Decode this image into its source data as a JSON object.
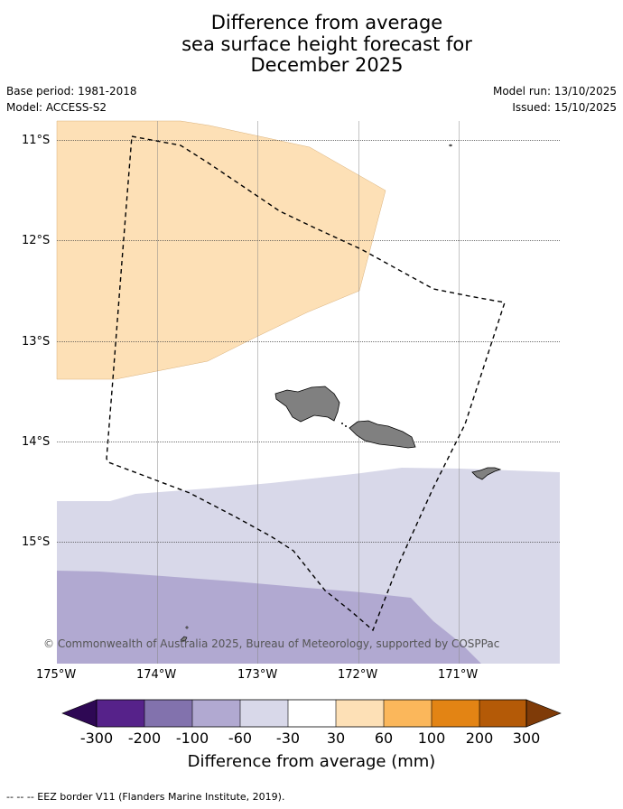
{
  "title": {
    "line1": "Difference from average",
    "line2": "sea surface height forecast for",
    "line3": "December 2025"
  },
  "meta": {
    "base_period": "Base period: 1981-2018",
    "model": "Model: ACCESS-S2",
    "model_run": "Model run: 13/10/2025",
    "issued": "Issued: 15/10/2025"
  },
  "map": {
    "lat_labels": [
      "11°S",
      "12°S",
      "13°S",
      "14°S",
      "15°S"
    ],
    "lon_labels": [
      "175°W",
      "174°W",
      "173°W",
      "172°W",
      "171°W"
    ],
    "credit": "© Commonwealth of Australia 2025, Bureau of Meteorology, supported by COSPPac",
    "colors": {
      "ocean_neutral": "#ffffff",
      "pos_30_60": "#fde0b6",
      "neg_30_60": "#d8d8e9",
      "neg_60_100": "#b1a9d1",
      "land": "#808080"
    }
  },
  "colorbar": {
    "ticks": [
      "-300",
      "-200",
      "-100",
      "-60",
      "-30",
      "30",
      "60",
      "100",
      "200",
      "300"
    ],
    "colors": [
      "#2e0854",
      "#56228a",
      "#8272ad",
      "#b1a9d1",
      "#d8d8e9",
      "#ffffff",
      "#fde0b6",
      "#fbb75b",
      "#e38414",
      "#b45a07",
      "#7f3b08"
    ],
    "label": "Difference from average (mm)"
  },
  "footnote": "--  --  -- EEZ border V11 (Flanders Marine Institute, 2019)."
}
